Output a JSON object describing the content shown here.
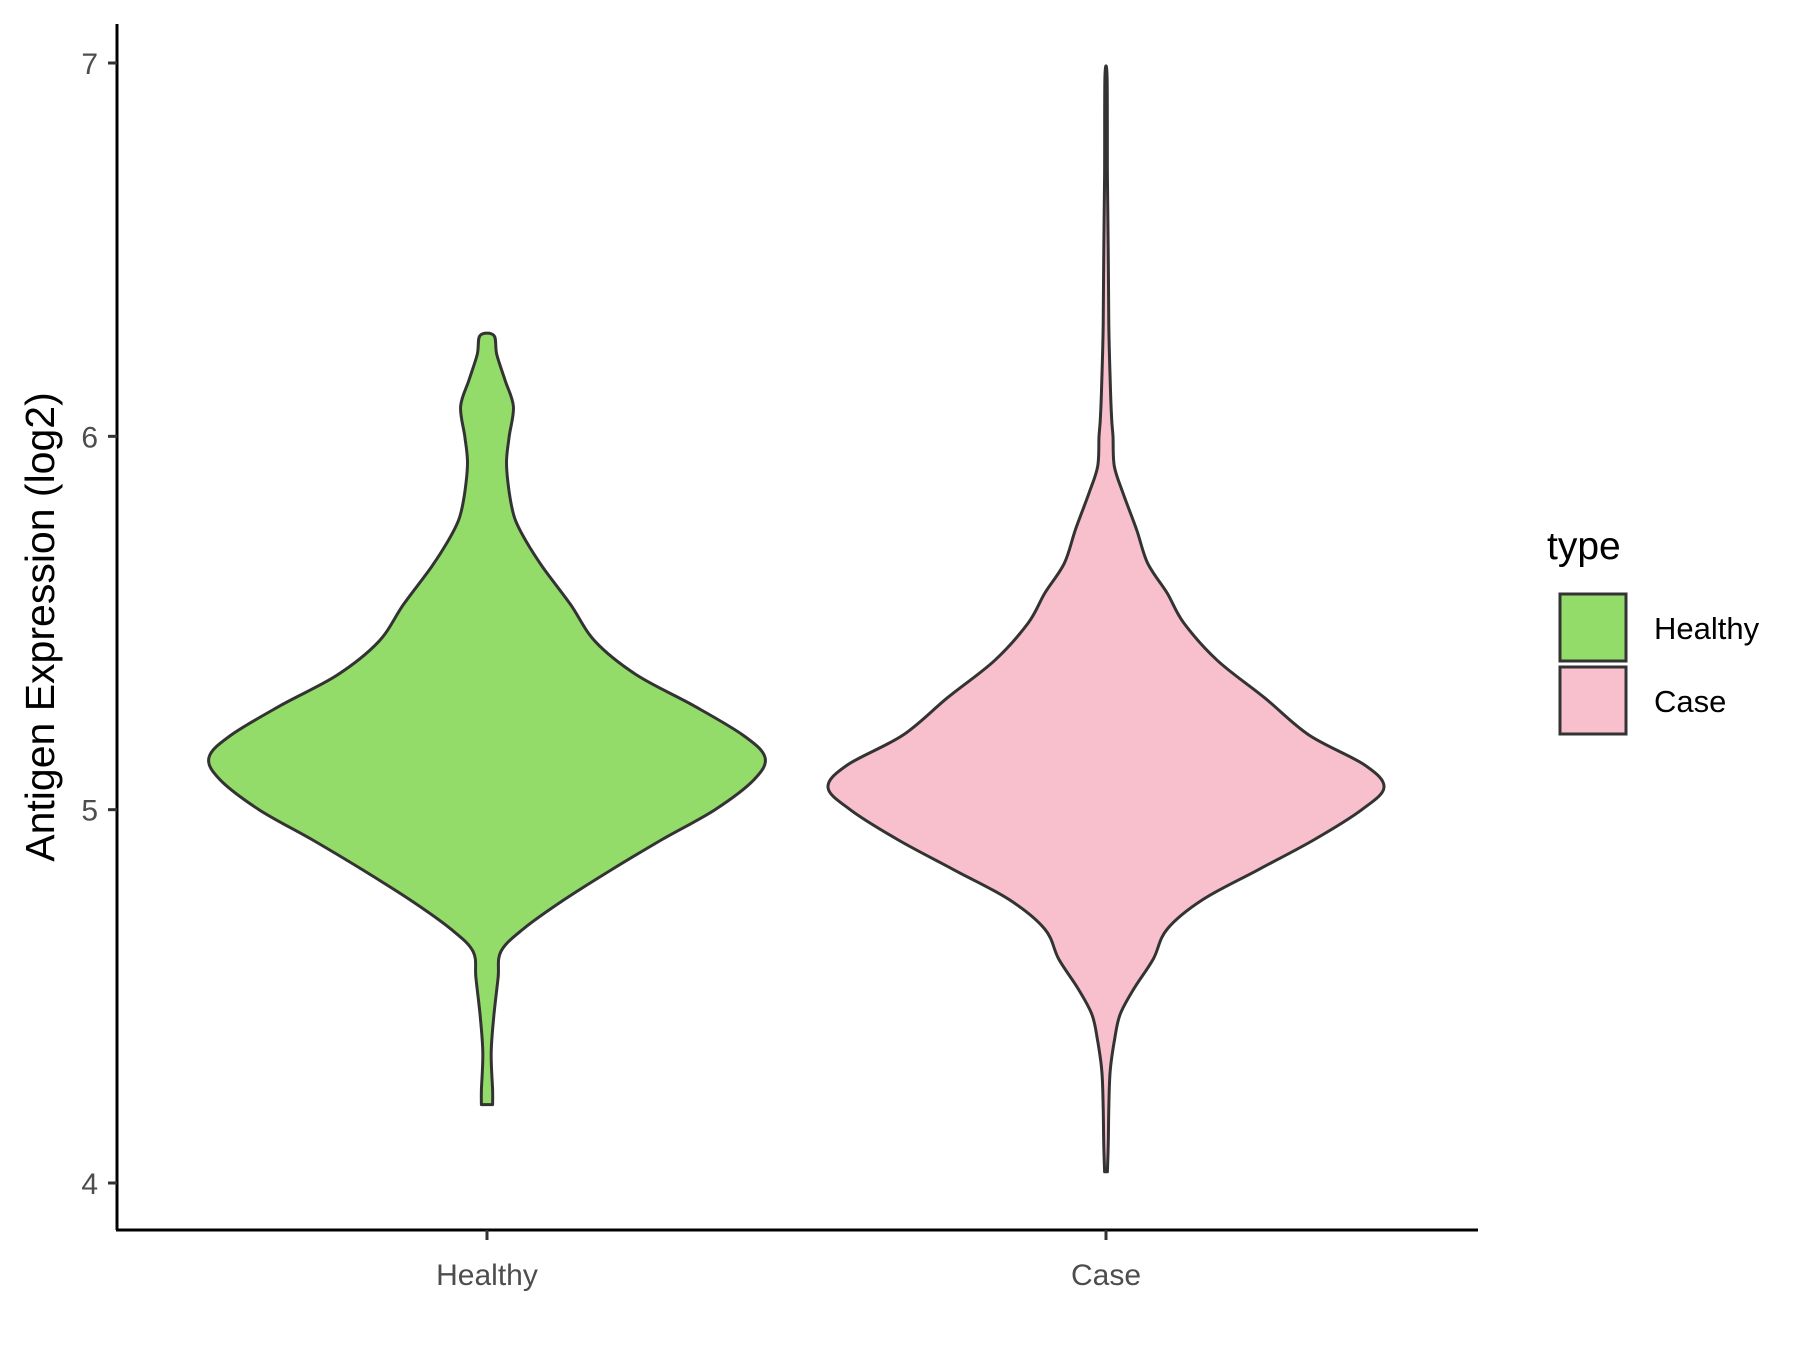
{
  "chart_data": {
    "type": "violin",
    "title": "",
    "xlabel": "",
    "ylabel": "Antigen Expression (log2)",
    "ylim": [
      3.9,
      7.1
    ],
    "yticks": [
      4,
      5,
      6,
      7
    ],
    "categories": [
      "Healthy",
      "Case"
    ],
    "grid": false,
    "legend": {
      "title": "type",
      "position": "right",
      "entries": [
        {
          "label": "Healthy",
          "color": "#93dc6a"
        },
        {
          "label": "Case",
          "color": "#f7c0cc"
        }
      ]
    },
    "series": [
      {
        "name": "Healthy",
        "color": "#93dc6a",
        "min": 4.21,
        "max": 6.27,
        "density_profile": [
          [
            4.21,
            0.02
          ],
          [
            4.25,
            0.02
          ],
          [
            4.35,
            0.015
          ],
          [
            4.45,
            0.025
          ],
          [
            4.55,
            0.04
          ],
          [
            4.62,
            0.05
          ],
          [
            4.68,
            0.13
          ],
          [
            4.76,
            0.28
          ],
          [
            4.84,
            0.45
          ],
          [
            4.92,
            0.63
          ],
          [
            5.0,
            0.82
          ],
          [
            5.08,
            0.96
          ],
          [
            5.14,
            1.0
          ],
          [
            5.2,
            0.92
          ],
          [
            5.28,
            0.74
          ],
          [
            5.36,
            0.54
          ],
          [
            5.45,
            0.39
          ],
          [
            5.55,
            0.3
          ],
          [
            5.65,
            0.2
          ],
          [
            5.72,
            0.14
          ],
          [
            5.78,
            0.1
          ],
          [
            5.85,
            0.08
          ],
          [
            5.93,
            0.07
          ],
          [
            6.0,
            0.08
          ],
          [
            6.08,
            0.095
          ],
          [
            6.15,
            0.065
          ],
          [
            6.22,
            0.035
          ],
          [
            6.27,
            0.025
          ]
        ]
      },
      {
        "name": "Case",
        "color": "#f7c0cc",
        "min": 4.03,
        "max": 6.96,
        "density_profile": [
          [
            4.03,
            0.005
          ],
          [
            4.1,
            0.008
          ],
          [
            4.2,
            0.01
          ],
          [
            4.3,
            0.015
          ],
          [
            4.38,
            0.03
          ],
          [
            4.45,
            0.05
          ],
          [
            4.52,
            0.1
          ],
          [
            4.6,
            0.17
          ],
          [
            4.68,
            0.22
          ],
          [
            4.76,
            0.35
          ],
          [
            4.84,
            0.55
          ],
          [
            4.92,
            0.75
          ],
          [
            5.0,
            0.92
          ],
          [
            5.06,
            1.0
          ],
          [
            5.12,
            0.93
          ],
          [
            5.2,
            0.73
          ],
          [
            5.3,
            0.57
          ],
          [
            5.4,
            0.4
          ],
          [
            5.5,
            0.28
          ],
          [
            5.58,
            0.22
          ],
          [
            5.66,
            0.15
          ],
          [
            5.75,
            0.11
          ],
          [
            5.85,
            0.06
          ],
          [
            5.92,
            0.03
          ],
          [
            6.0,
            0.025
          ],
          [
            6.05,
            0.02
          ],
          [
            6.15,
            0.015
          ],
          [
            6.3,
            0.01
          ],
          [
            6.5,
            0.008
          ],
          [
            6.7,
            0.005
          ],
          [
            6.96,
            0.004
          ]
        ]
      }
    ]
  }
}
